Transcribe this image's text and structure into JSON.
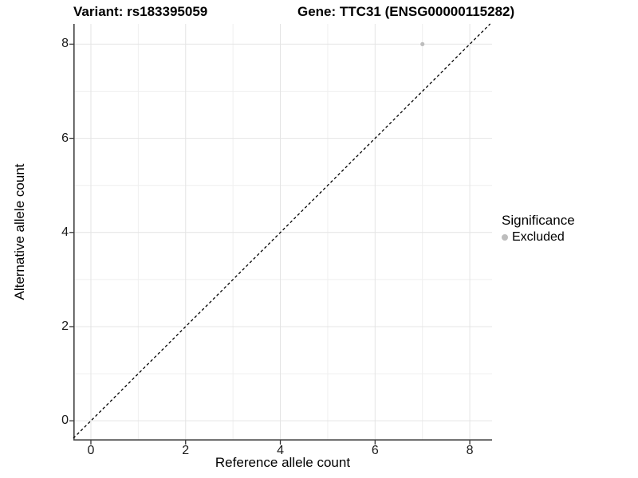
{
  "figure": {
    "background": "#ffffff"
  },
  "chart_data": {
    "type": "scatter",
    "title_left": "Variant: rs183395059",
    "title_right": "Gene: TTC31 (ENSG00000115282)",
    "xlabel": "Reference allele count",
    "ylabel": "Alternative allele count",
    "xlim": [
      -0.37,
      8.47
    ],
    "ylim": [
      -0.42,
      8.43
    ],
    "x_major_ticks": [
      0,
      2,
      4,
      6,
      8
    ],
    "x_minor_ticks": [
      1,
      3,
      5,
      7
    ],
    "y_major_ticks": [
      0,
      2,
      4,
      6,
      8
    ],
    "y_minor_ticks": [
      1,
      3,
      5,
      7
    ],
    "grid": true,
    "identity_line": {
      "slope": 1,
      "intercept": 0,
      "style": "dashed",
      "color": "#000000"
    },
    "series": [
      {
        "name": "Excluded",
        "color": "#bdbdbd",
        "points": [
          {
            "x": 7,
            "y": 8
          }
        ]
      }
    ],
    "legend": {
      "title": "Significance",
      "position": "right",
      "items": [
        {
          "label": "Excluded",
          "color": "#bdbdbd"
        }
      ]
    },
    "style": {
      "grid_major_color": "#e4e4e4",
      "grid_minor_color": "#efefef",
      "axis_line_color": "#404040",
      "tick_color": "#333333",
      "point_radius": 2.6
    }
  }
}
